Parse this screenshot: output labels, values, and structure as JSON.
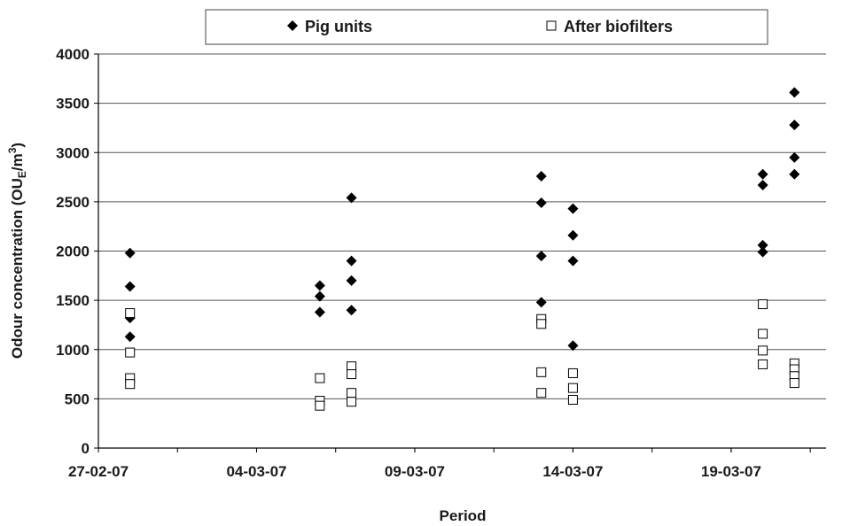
{
  "chart_data": {
    "type": "scatter",
    "title": "",
    "xlabel": "Period",
    "ylabel": "Odour concentration (OU",
    "ylabel_subscript": "E",
    "ylabel_after": "/m",
    "ylabel_superscript": "3",
    "ylabel_close": ")",
    "x_tick_labels": [
      "27-02-07",
      "04-03-07",
      "09-03-07",
      "14-03-07",
      "19-03-07"
    ],
    "x_tick_dates": [
      "2007-02-27",
      "2007-03-04",
      "2007-03-09",
      "2007-03-14",
      "2007-03-19"
    ],
    "xlim": [
      "2007-02-27",
      "2007-03-22"
    ],
    "ylim": [
      0,
      4000
    ],
    "y_ticks": [
      0,
      500,
      1000,
      1500,
      2000,
      2500,
      3000,
      3500,
      4000
    ],
    "y_tick_labels": [
      "0",
      "500",
      "1000",
      "1500",
      "2000",
      "2500",
      "3000",
      "3500",
      "4000"
    ],
    "grid": "horizontal",
    "legend_position": "top",
    "series": [
      {
        "name": "Pig units",
        "marker": "diamond-filled",
        "color": "#000000",
        "points": [
          {
            "x": "2007-02-28",
            "y": 1980
          },
          {
            "x": "2007-02-28",
            "y": 1640
          },
          {
            "x": "2007-02-28",
            "y": 1320
          },
          {
            "x": "2007-02-28",
            "y": 1130
          },
          {
            "x": "2007-03-06",
            "y": 1650
          },
          {
            "x": "2007-03-06",
            "y": 1540
          },
          {
            "x": "2007-03-06",
            "y": 1380
          },
          {
            "x": "2007-03-07",
            "y": 2540
          },
          {
            "x": "2007-03-07",
            "y": 1900
          },
          {
            "x": "2007-03-07",
            "y": 1700
          },
          {
            "x": "2007-03-07",
            "y": 1400
          },
          {
            "x": "2007-03-13",
            "y": 2760
          },
          {
            "x": "2007-03-13",
            "y": 2490
          },
          {
            "x": "2007-03-13",
            "y": 1950
          },
          {
            "x": "2007-03-13",
            "y": 1480
          },
          {
            "x": "2007-03-14",
            "y": 2430
          },
          {
            "x": "2007-03-14",
            "y": 2160
          },
          {
            "x": "2007-03-14",
            "y": 1900
          },
          {
            "x": "2007-03-14",
            "y": 1040
          },
          {
            "x": "2007-03-20",
            "y": 2780
          },
          {
            "x": "2007-03-20",
            "y": 2670
          },
          {
            "x": "2007-03-20",
            "y": 2060
          },
          {
            "x": "2007-03-20",
            "y": 1990
          },
          {
            "x": "2007-03-21",
            "y": 3610
          },
          {
            "x": "2007-03-21",
            "y": 3280
          },
          {
            "x": "2007-03-21",
            "y": 2950
          },
          {
            "x": "2007-03-21",
            "y": 2780
          }
        ]
      },
      {
        "name": "After biofilters",
        "marker": "square-open",
        "color": "#000000",
        "points": [
          {
            "x": "2007-02-28",
            "y": 1370
          },
          {
            "x": "2007-02-28",
            "y": 970
          },
          {
            "x": "2007-02-28",
            "y": 710
          },
          {
            "x": "2007-02-28",
            "y": 650
          },
          {
            "x": "2007-03-06",
            "y": 710
          },
          {
            "x": "2007-03-06",
            "y": 480
          },
          {
            "x": "2007-03-06",
            "y": 430
          },
          {
            "x": "2007-03-07",
            "y": 830
          },
          {
            "x": "2007-03-07",
            "y": 750
          },
          {
            "x": "2007-03-07",
            "y": 560
          },
          {
            "x": "2007-03-07",
            "y": 470
          },
          {
            "x": "2007-03-13",
            "y": 1310
          },
          {
            "x": "2007-03-13",
            "y": 1260
          },
          {
            "x": "2007-03-13",
            "y": 770
          },
          {
            "x": "2007-03-13",
            "y": 560
          },
          {
            "x": "2007-03-14",
            "y": 760
          },
          {
            "x": "2007-03-14",
            "y": 610
          },
          {
            "x": "2007-03-14",
            "y": 490
          },
          {
            "x": "2007-03-20",
            "y": 1460
          },
          {
            "x": "2007-03-20",
            "y": 1160
          },
          {
            "x": "2007-03-20",
            "y": 990
          },
          {
            "x": "2007-03-20",
            "y": 850
          },
          {
            "x": "2007-03-21",
            "y": 860
          },
          {
            "x": "2007-03-21",
            "y": 800
          },
          {
            "x": "2007-03-21",
            "y": 730
          },
          {
            "x": "2007-03-21",
            "y": 660
          }
        ]
      }
    ]
  }
}
